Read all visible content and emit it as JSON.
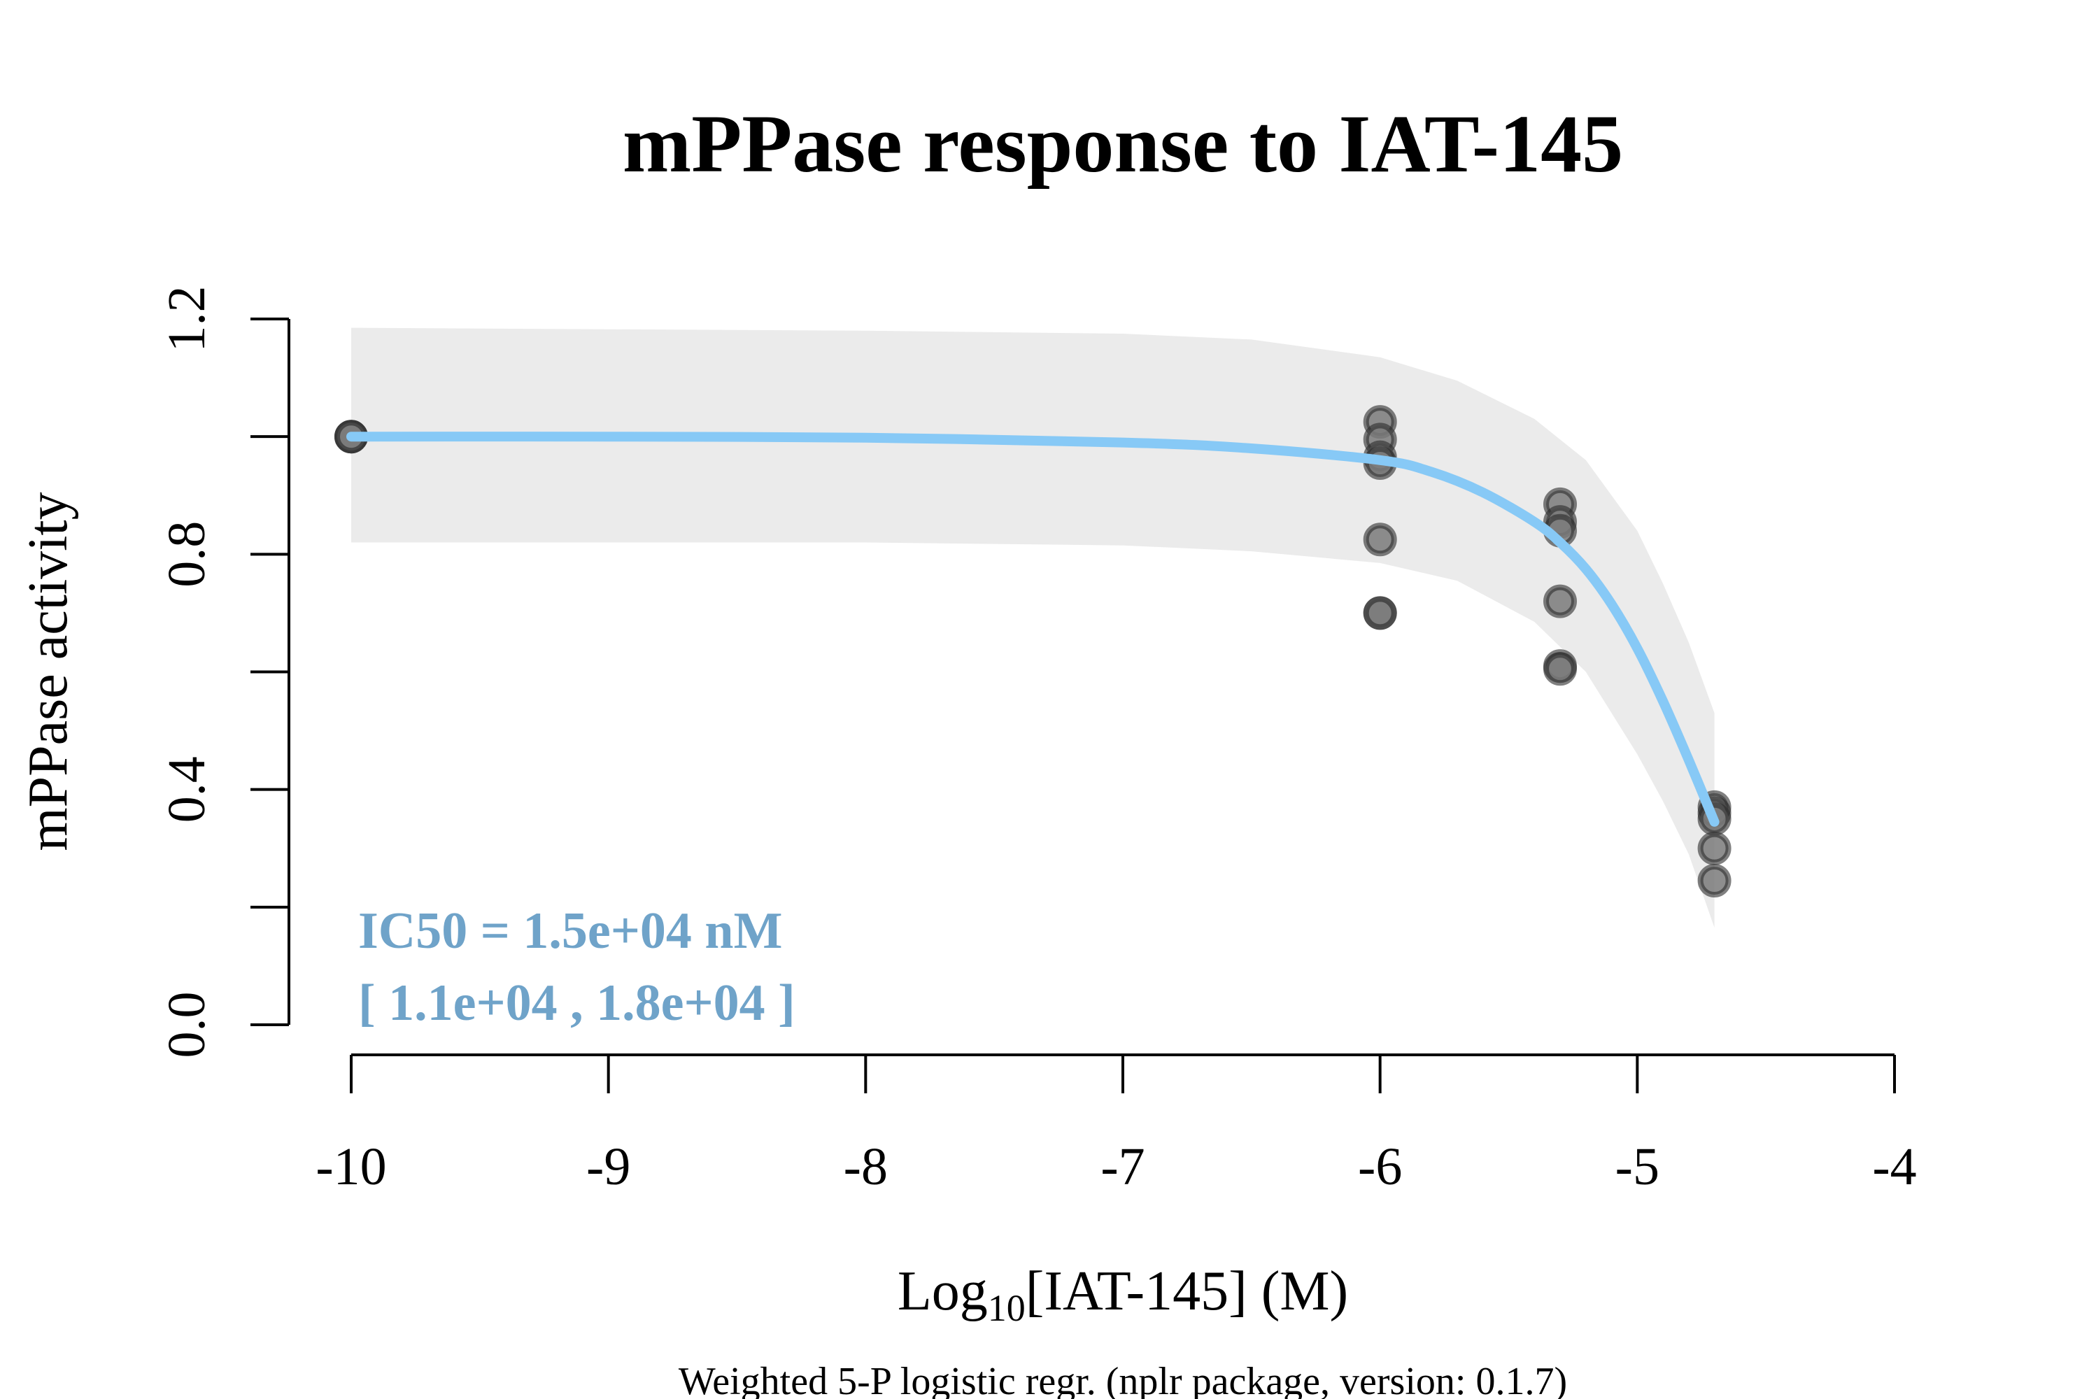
{
  "chart_data": {
    "type": "scatter",
    "title": "mPPase response to IAT-145",
    "xlabel_main": "Log",
    "xlabel_sub": "10",
    "xlabel_rest": "[IAT-145] (M)",
    "ylabel": "mPPase activity",
    "footnote": "Weighted 5-P logistic regr. (nplr package, version: 0.1.7)",
    "xlim": [
      -10,
      -4
    ],
    "ylim": [
      0,
      1.2
    ],
    "x_ticks": [
      -10,
      -9,
      -8,
      -7,
      -6,
      -5,
      -4
    ],
    "x_tick_labels": [
      "-10",
      "-9",
      "-8",
      "-7",
      "-6",
      "-5",
      "-4"
    ],
    "y_ticks": [
      0,
      0.2,
      0.4,
      0.6,
      0.8,
      1.0,
      1.2
    ],
    "y_tick_labels": [
      "0.0",
      "",
      "0.4",
      "",
      "0.8",
      "",
      "1.2"
    ],
    "grid": false,
    "points": [
      {
        "x": -10,
        "y": 1.0
      },
      {
        "x": -10,
        "y": 1.0
      },
      {
        "x": -10,
        "y": 1.0
      },
      {
        "x": -6,
        "y": 1.025
      },
      {
        "x": -6,
        "y": 0.995
      },
      {
        "x": -6,
        "y": 0.965
      },
      {
        "x": -6,
        "y": 0.955
      },
      {
        "x": -6,
        "y": 0.825
      },
      {
        "x": -6,
        "y": 0.7
      },
      {
        "x": -6,
        "y": 0.7
      },
      {
        "x": -5.3,
        "y": 0.885
      },
      {
        "x": -5.3,
        "y": 0.855
      },
      {
        "x": -5.3,
        "y": 0.84
      },
      {
        "x": -5.3,
        "y": 0.72
      },
      {
        "x": -5.3,
        "y": 0.61
      },
      {
        "x": -5.3,
        "y": 0.605
      },
      {
        "x": -4.7,
        "y": 0.37
      },
      {
        "x": -4.7,
        "y": 0.36
      },
      {
        "x": -4.7,
        "y": 0.35
      },
      {
        "x": -4.7,
        "y": 0.3
      },
      {
        "x": -4.7,
        "y": 0.245
      }
    ],
    "fit_curve": {
      "x": [
        -10,
        -9,
        -8,
        -7,
        -6.5,
        -6,
        -5.8,
        -5.6,
        -5.4,
        -5.3,
        -5.2,
        -5.1,
        -5.0,
        -4.9,
        -4.8,
        -4.7
      ],
      "y": [
        1.0,
        1.0,
        0.998,
        0.99,
        0.98,
        0.96,
        0.94,
        0.905,
        0.855,
        0.82,
        0.775,
        0.715,
        0.64,
        0.55,
        0.45,
        0.345
      ]
    },
    "confidence_band": {
      "x": [
        -10,
        -8,
        -7,
        -6.5,
        -6,
        -5.7,
        -5.4,
        -5.2,
        -5.0,
        -4.9,
        -4.8,
        -4.7
      ],
      "upper": [
        1.185,
        1.18,
        1.175,
        1.165,
        1.135,
        1.095,
        1.03,
        0.96,
        0.84,
        0.75,
        0.65,
        0.53
      ],
      "lower": [
        0.82,
        0.82,
        0.815,
        0.805,
        0.785,
        0.755,
        0.685,
        0.6,
        0.46,
        0.38,
        0.29,
        0.165
      ]
    },
    "annotation": {
      "line1": "IC50 = 1.5e+04 nM",
      "line2": "[ 1.1e+04 , 1.8e+04 ]"
    },
    "colors": {
      "fit": "#87c9f6",
      "band": "#ebebeb",
      "point_fill": "#7a7a7a",
      "point_stroke": "#2b2b2b",
      "annotation": "#6fa3c9"
    }
  }
}
